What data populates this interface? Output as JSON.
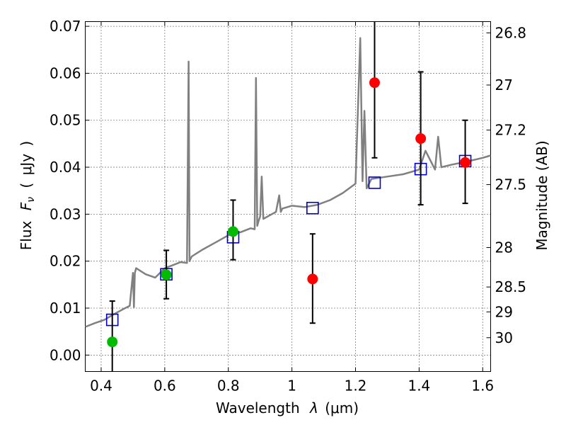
{
  "chart_data": {
    "type": "scatter",
    "title": "",
    "xlabel_text": "Wavelength",
    "xlabel_symbol": "λ",
    "xlabel_unit": "(μm)",
    "ylabel_text": "Flux",
    "ylabel_symbol": "F",
    "ylabel_subscript": "ν",
    "ylabel_open": "(",
    "ylabel_unit": "μJy",
    "ylabel_close": ")",
    "y2label": "Magnitude (AB)",
    "xlim": [
      0.35,
      1.625
    ],
    "ylim": [
      -0.0035,
      0.071
    ],
    "grid": true,
    "x_ticks": [
      {
        "value": 0.4,
        "label": "0.4"
      },
      {
        "value": 0.6,
        "label": "0.6"
      },
      {
        "value": 0.8,
        "label": "0.8"
      },
      {
        "value": 1.0,
        "label": "1"
      },
      {
        "value": 1.2,
        "label": "1.2"
      },
      {
        "value": 1.4,
        "label": "1.4"
      },
      {
        "value": 1.6,
        "label": "1.6"
      }
    ],
    "y_ticks": [
      {
        "value": 0.0,
        "label": "0.00"
      },
      {
        "value": 0.01,
        "label": "0.01"
      },
      {
        "value": 0.02,
        "label": "0.02"
      },
      {
        "value": 0.03,
        "label": "0.03"
      },
      {
        "value": 0.04,
        "label": "0.04"
      },
      {
        "value": 0.05,
        "label": "0.05"
      },
      {
        "value": 0.06,
        "label": "0.06"
      },
      {
        "value": 0.07,
        "label": "0.07"
      }
    ],
    "mag_ticks": [
      {
        "flux": 0.0686,
        "label": "26.8"
      },
      {
        "flux": 0.0575,
        "label": "27"
      },
      {
        "flux": 0.0479,
        "label": "27.2"
      },
      {
        "flux": 0.0363,
        "label": "27.5"
      },
      {
        "flux": 0.0229,
        "label": "28"
      },
      {
        "flux": 0.0145,
        "label": "28.5"
      },
      {
        "flux": 0.0092,
        "label": "29"
      },
      {
        "flux": 0.0037,
        "label": "30"
      }
    ],
    "series": [
      {
        "name": "model_spectrum",
        "kind": "line",
        "color": "#808080",
        "x": [
          0.35,
          0.38,
          0.41,
          0.44,
          0.47,
          0.49,
          0.5,
          0.503,
          0.506,
          0.51,
          0.54,
          0.57,
          0.6,
          0.62,
          0.65,
          0.67,
          0.675,
          0.678,
          0.681,
          0.685,
          0.72,
          0.76,
          0.8,
          0.84,
          0.87,
          0.883,
          0.887,
          0.891,
          0.895,
          0.9,
          0.905,
          0.91,
          0.95,
          0.96,
          0.965,
          0.97,
          1.0,
          1.04,
          1.08,
          1.12,
          1.16,
          1.2,
          1.215,
          1.222,
          1.228,
          1.235,
          1.25,
          1.3,
          1.35,
          1.4,
          1.42,
          1.45,
          1.46,
          1.47,
          1.5,
          1.55,
          1.6,
          1.625
        ],
        "y": [
          0.006,
          0.0068,
          0.0075,
          0.0087,
          0.0098,
          0.0105,
          0.0175,
          0.0102,
          0.0175,
          0.0185,
          0.0172,
          0.0165,
          0.0185,
          0.019,
          0.0198,
          0.0196,
          0.0625,
          0.02,
          0.0205,
          0.021,
          0.0225,
          0.024,
          0.0255,
          0.0262,
          0.027,
          0.0268,
          0.059,
          0.0275,
          0.0285,
          0.0295,
          0.038,
          0.029,
          0.0305,
          0.034,
          0.0305,
          0.0312,
          0.0318,
          0.0315,
          0.032,
          0.033,
          0.0345,
          0.0365,
          0.0675,
          0.037,
          0.052,
          0.0355,
          0.0375,
          0.038,
          0.0385,
          0.0395,
          0.0435,
          0.0395,
          0.0465,
          0.04,
          0.0405,
          0.0412,
          0.042,
          0.0425
        ]
      },
      {
        "name": "photometry_green",
        "kind": "points",
        "color": "#00bb00",
        "x": [
          0.435,
          0.605,
          0.815
        ],
        "y": [
          0.0028,
          0.0171,
          0.0263
        ],
        "yerr_low": [
          0.0105,
          0.0051,
          0.006
        ],
        "yerr_high": [
          0.0087,
          0.0052,
          0.0067
        ]
      },
      {
        "name": "photometry_red",
        "kind": "points",
        "color": "#ff0000",
        "x": [
          1.065,
          1.26,
          1.405,
          1.545
        ],
        "y": [
          0.0162,
          0.058,
          0.0461,
          0.041
        ],
        "yerr_low": [
          0.0094,
          0.016,
          0.0141,
          0.0087
        ],
        "yerr_high": [
          0.0096,
          0.013,
          0.0142,
          0.009
        ]
      },
      {
        "name": "model_synthetic_photometry",
        "kind": "squares",
        "color": "#0000cc",
        "x": [
          0.435,
          0.605,
          0.815,
          1.065,
          1.26,
          1.405,
          1.545
        ],
        "y": [
          0.0075,
          0.0172,
          0.0251,
          0.0313,
          0.0367,
          0.0396,
          0.0413
        ]
      }
    ]
  }
}
